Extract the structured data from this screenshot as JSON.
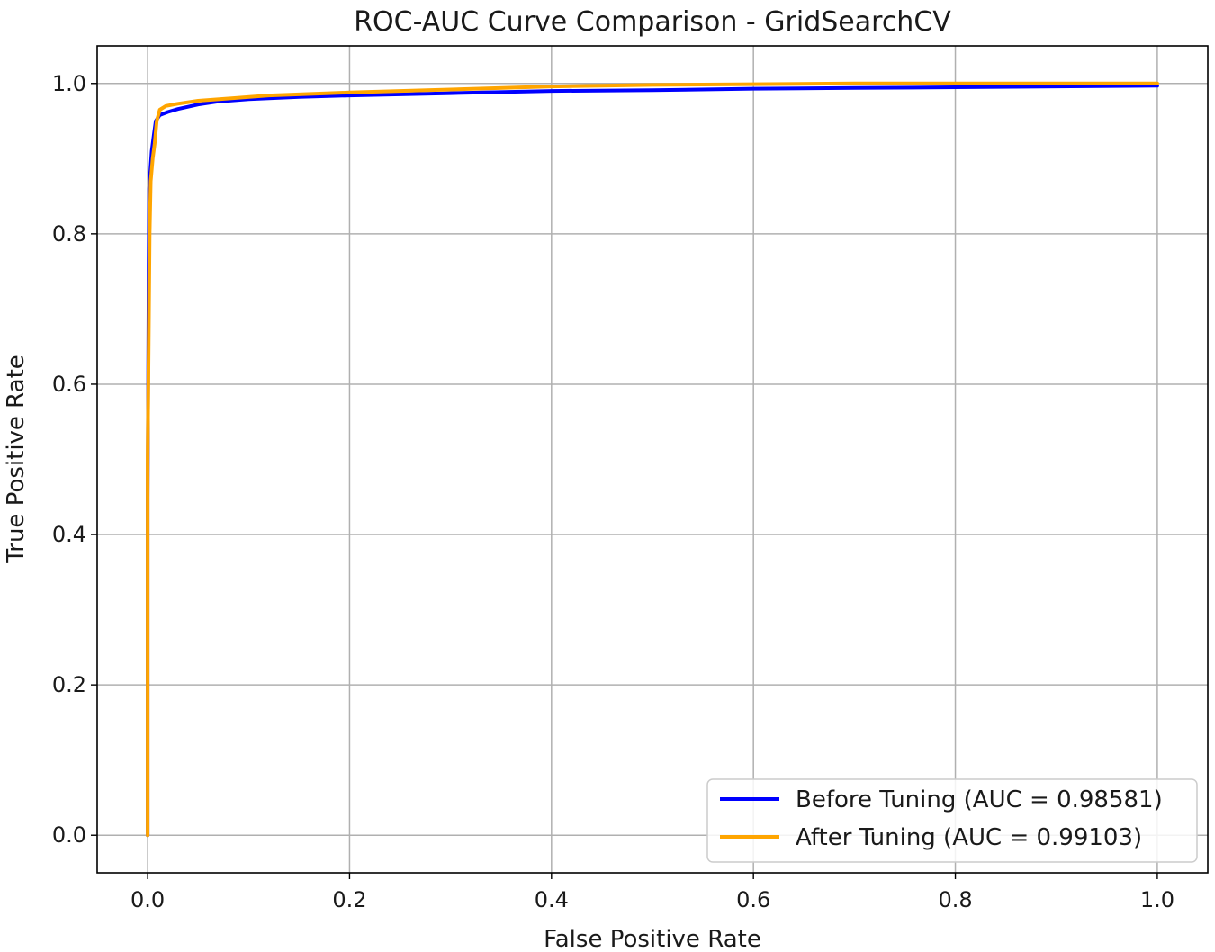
{
  "chart_data": {
    "type": "line",
    "title": "ROC-AUC Curve Comparison - GridSearchCV",
    "xlabel": "False Positive Rate",
    "ylabel": "True Positive Rate",
    "xlim": [
      -0.05,
      1.05
    ],
    "ylim": [
      -0.05,
      1.05
    ],
    "xticks": [
      "0.0",
      "0.2",
      "0.4",
      "0.6",
      "0.8",
      "1.0"
    ],
    "yticks": [
      "0.0",
      "0.2",
      "0.4",
      "0.6",
      "0.8",
      "1.0"
    ],
    "grid": true,
    "legend_position": "lower-right",
    "series": [
      {
        "name": "Before Tuning (AUC = 0.98581)",
        "color": "#0000ff",
        "points": [
          [
            0,
            0
          ],
          [
            0,
            0.45
          ],
          [
            0.0005,
            0.62
          ],
          [
            0.001,
            0.75
          ],
          [
            0.0015,
            0.86
          ],
          [
            0.0025,
            0.88
          ],
          [
            0.004,
            0.91
          ],
          [
            0.006,
            0.93
          ],
          [
            0.008,
            0.95
          ],
          [
            0.012,
            0.958
          ],
          [
            0.02,
            0.962
          ],
          [
            0.03,
            0.966
          ],
          [
            0.05,
            0.972
          ],
          [
            0.07,
            0.976
          ],
          [
            0.1,
            0.979
          ],
          [
            0.15,
            0.982
          ],
          [
            0.2,
            0.984
          ],
          [
            0.3,
            0.987
          ],
          [
            0.4,
            0.99
          ],
          [
            0.5,
            0.991
          ],
          [
            0.6,
            0.993
          ],
          [
            0.7,
            0.994
          ],
          [
            0.8,
            0.995
          ],
          [
            0.9,
            0.996
          ],
          [
            1.0,
            0.997
          ]
        ]
      },
      {
        "name": "After Tuning (AUC = 0.99103)",
        "color": "#ffa500",
        "points": [
          [
            0,
            0
          ],
          [
            0,
            0.5
          ],
          [
            0.001,
            0.65
          ],
          [
            0.002,
            0.8
          ],
          [
            0.003,
            0.87
          ],
          [
            0.005,
            0.9
          ],
          [
            0.007,
            0.92
          ],
          [
            0.009,
            0.95
          ],
          [
            0.012,
            0.965
          ],
          [
            0.018,
            0.97
          ],
          [
            0.03,
            0.973
          ],
          [
            0.05,
            0.977
          ],
          [
            0.08,
            0.98
          ],
          [
            0.12,
            0.984
          ],
          [
            0.2,
            0.988
          ],
          [
            0.3,
            0.992
          ],
          [
            0.4,
            0.996
          ],
          [
            0.5,
            0.998
          ],
          [
            0.6,
            0.999
          ],
          [
            0.7,
            1.0
          ],
          [
            0.8,
            1.0
          ],
          [
            0.9,
            1.0
          ],
          [
            1.0,
            1.0
          ]
        ]
      }
    ]
  }
}
